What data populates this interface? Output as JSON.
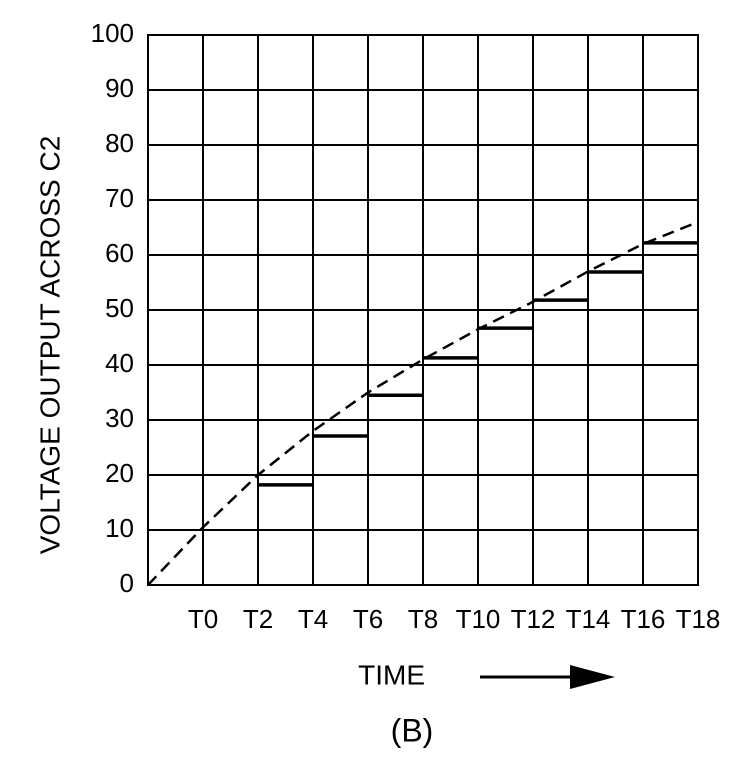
{
  "chart_data": {
    "type": "step",
    "y_label": "VOLTAGE OUTPUT ACROSS C2",
    "x_label": "TIME",
    "caption": "(B)",
    "xlim": [
      -2,
      18
    ],
    "ylim": [
      0,
      100
    ],
    "yticks": [
      0,
      10,
      20,
      30,
      40,
      50,
      60,
      70,
      80,
      90,
      100
    ],
    "xticks": [
      {
        "value": 0,
        "label": "T0"
      },
      {
        "value": 2,
        "label": "T2"
      },
      {
        "value": 4,
        "label": "T4"
      },
      {
        "value": 6,
        "label": "T6"
      },
      {
        "value": 8,
        "label": "T8"
      },
      {
        "value": 10,
        "label": "T10"
      },
      {
        "value": 12,
        "label": "T12"
      },
      {
        "value": 14,
        "label": "T14"
      },
      {
        "value": 16,
        "label": "T16"
      },
      {
        "value": 18,
        "label": "T18"
      }
    ],
    "grid": true,
    "series": [
      {
        "kind": "step",
        "color": "#000000",
        "x": [
          2,
          4,
          6,
          8,
          10,
          12,
          14,
          16
        ],
        "values": [
          18.2,
          27.1,
          34.5,
          41.3,
          46.7,
          51.8,
          56.9,
          62.2
        ]
      },
      {
        "kind": "dashed",
        "color": "#000000",
        "x": [
          -2,
          0,
          2,
          4,
          6,
          8,
          10,
          12,
          14,
          16,
          18
        ],
        "values": [
          0,
          10.5,
          20,
          28,
          35,
          41,
          46.5,
          51.5,
          57,
          62,
          66
        ]
      }
    ]
  }
}
